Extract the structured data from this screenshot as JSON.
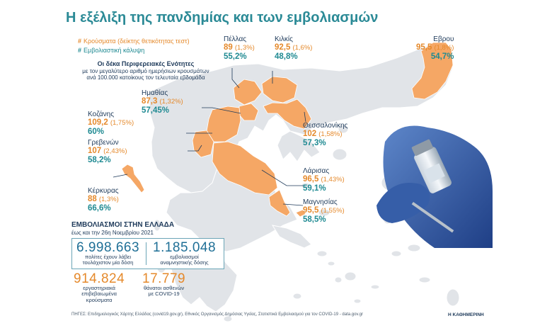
{
  "title": "Η εξέλιξη της πανδημίας και των εμβολιασμών",
  "legend": {
    "cases": "Κρούσματα (δείκτης θετικότητας τεστ)",
    "coverage": "Εμβολιαστική κάλυψη"
  },
  "note": {
    "head": "Οι δέκα Περιφερειακές Ενότητες",
    "line1": "με τον μεγαλύτερο αριθμό ημερήσιων κρουσμάτων",
    "line2": "ανά 100.000 κατοίκους τον τελευταία εβδομάδα"
  },
  "regions": [
    {
      "id": "pellas",
      "name": "Πέλλας",
      "cases": "89",
      "positivity": "(1,3%)",
      "coverage": "55,2%"
    },
    {
      "id": "kilkis",
      "name": "Κιλκίς",
      "cases": "92,5",
      "positivity": "(1,6%)",
      "coverage": "48,8%"
    },
    {
      "id": "evros",
      "name": "Εβρου",
      "cases": "95,5",
      "positivity": "(1,8%)",
      "coverage": "54,7%"
    },
    {
      "id": "imathia",
      "name": "Ημαθίας",
      "cases": "87,3",
      "positivity": "(1,32%)",
      "coverage": "57,45%"
    },
    {
      "id": "kozani",
      "name": "Κοζάνης",
      "cases": "109,2",
      "positivity": "(1,75%)",
      "coverage": "60%"
    },
    {
      "id": "thessaloniki",
      "name": "Θεσσαλονίκης",
      "cases": "102",
      "positivity": "(1,58%)",
      "coverage": "57,3%"
    },
    {
      "id": "grevena",
      "name": "Γρεβενών",
      "cases": "107",
      "positivity": "(2,43%)",
      "coverage": "58,2%"
    },
    {
      "id": "larisa",
      "name": "Λάρισας",
      "cases": "96,5",
      "positivity": "(1,43%)",
      "coverage": "59,1%"
    },
    {
      "id": "kerkyra",
      "name": "Κέρκυρας",
      "cases": "88",
      "positivity": "(1,3%)",
      "coverage": "66,6%"
    },
    {
      "id": "magnisia",
      "name": "Μαγνησίας",
      "cases": "95,5",
      "positivity": "(1,55%)",
      "coverage": "58,5%"
    }
  ],
  "vaccination": {
    "heading": "ΕΜΒΟΛΙΑΣΜΟΙ ΣΤΗΝ ΕΛΛΑΔΑ",
    "subheading": "έως και την 26η Νοεμβρίου 2021",
    "stats": [
      {
        "id": "one-dose",
        "value": "6.998.663",
        "line1": "πολίτες έχουν λάβει",
        "line2": "τουλάχιστον μία δόση"
      },
      {
        "id": "booster",
        "value": "1.185.048",
        "line1": "εμβολιασμοί",
        "line2": "αναμνηστικής δόσης"
      },
      {
        "id": "lab-cases",
        "value": "914.824",
        "line1": "εργαστηριακά",
        "line2": "επιβεβαιωμένα",
        "line3": "κρούσματα"
      },
      {
        "id": "deaths",
        "value": "17.779",
        "line1": "θάνατοι ασθενών",
        "line2": "με COVID-19"
      }
    ]
  },
  "sources": "ΠΗΓΕΣ: Επιδημιολογικός Χάρτης Ελλάδας (covid19.gov.gr), Εθνικός Οργανισμός Δημόσιας Υγείας, Στατιστικά Εμβολιασμού για τον COVID-19 - data.gov.gr",
  "brand": "Η ΚΑΘΗΜΕΡΙΝΗ",
  "colors": {
    "highlight": "#f5a765",
    "land": "#e1e4e8",
    "accent_orange": "#e5892b",
    "accent_teal": "#1f8a92"
  }
}
